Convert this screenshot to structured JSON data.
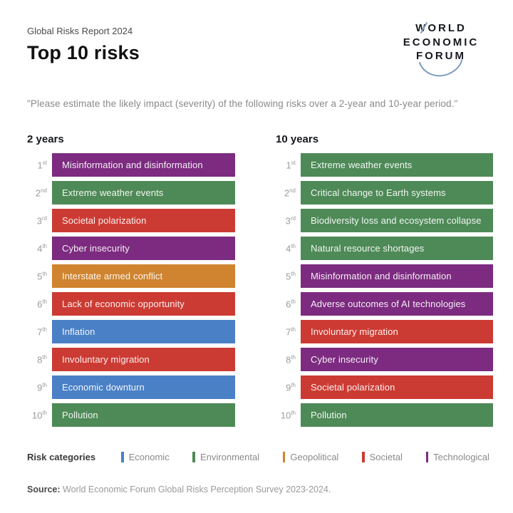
{
  "header": {
    "report_label": "Global Risks Report 2024",
    "title": "Top 10 risks",
    "logo": {
      "line1": "WORLD",
      "line2": "ECONOMIC",
      "line3": "FORUM",
      "arc_color": "#7d9cbd"
    }
  },
  "question": "\"Please estimate the likely impact (severity) of the following risks over a 2-year and 10-year period.\"",
  "category_colors": {
    "economic": "#4a80c6",
    "environmental": "#4e8a57",
    "geopolitical": "#d0842f",
    "societal": "#cc3b33",
    "technological": "#7c2b80"
  },
  "chart_data": [
    {
      "type": "table",
      "title": "2 years",
      "columns": [
        "rank",
        "risk",
        "category"
      ],
      "rows": [
        {
          "rank": "1",
          "suffix": "st",
          "risk": "Misinformation and disinformation",
          "category": "technological"
        },
        {
          "rank": "2",
          "suffix": "nd",
          "risk": "Extreme weather events",
          "category": "environmental"
        },
        {
          "rank": "3",
          "suffix": "rd",
          "risk": "Societal polarization",
          "category": "societal"
        },
        {
          "rank": "4",
          "suffix": "th",
          "risk": "Cyber insecurity",
          "category": "technological"
        },
        {
          "rank": "5",
          "suffix": "th",
          "risk": "Interstate armed conflict",
          "category": "geopolitical"
        },
        {
          "rank": "6",
          "suffix": "th",
          "risk": "Lack of economic opportunity",
          "category": "societal"
        },
        {
          "rank": "7",
          "suffix": "th",
          "risk": "Inflation",
          "category": "economic"
        },
        {
          "rank": "8",
          "suffix": "th",
          "risk": "Involuntary migration",
          "category": "societal"
        },
        {
          "rank": "9",
          "suffix": "th",
          "risk": "Economic downturn",
          "category": "economic"
        },
        {
          "rank": "10",
          "suffix": "th",
          "risk": "Pollution",
          "category": "environmental"
        }
      ]
    },
    {
      "type": "table",
      "title": "10 years",
      "columns": [
        "rank",
        "risk",
        "category"
      ],
      "rows": [
        {
          "rank": "1",
          "suffix": "st",
          "risk": "Extreme weather events",
          "category": "environmental"
        },
        {
          "rank": "2",
          "suffix": "nd",
          "risk": "Critical change to Earth systems",
          "category": "environmental"
        },
        {
          "rank": "3",
          "suffix": "rd",
          "risk": "Biodiversity loss and ecosystem collapse",
          "category": "environmental"
        },
        {
          "rank": "4",
          "suffix": "th",
          "risk": "Natural resource shortages",
          "category": "environmental"
        },
        {
          "rank": "5",
          "suffix": "th",
          "risk": "Misinformation and disinformation",
          "category": "technological"
        },
        {
          "rank": "6",
          "suffix": "th",
          "risk": "Adverse outcomes of AI technologies",
          "category": "technological"
        },
        {
          "rank": "7",
          "suffix": "th",
          "risk": "Involuntary migration",
          "category": "societal"
        },
        {
          "rank": "8",
          "suffix": "th",
          "risk": "Cyber insecurity",
          "category": "technological"
        },
        {
          "rank": "9",
          "suffix": "th",
          "risk": "Societal polarization",
          "category": "societal"
        },
        {
          "rank": "10",
          "suffix": "th",
          "risk": "Pollution",
          "category": "environmental"
        }
      ]
    }
  ],
  "legend": {
    "label": "Risk categories",
    "items": [
      {
        "label": "Economic",
        "category": "economic"
      },
      {
        "label": "Environmental",
        "category": "environmental"
      },
      {
        "label": "Geopolitical",
        "category": "geopolitical"
      },
      {
        "label": "Societal",
        "category": "societal"
      },
      {
        "label": "Technological",
        "category": "technological"
      }
    ]
  },
  "source": {
    "label": "Source:",
    "text": " World Economic Forum Global Risks Perception Survey 2023-2024."
  }
}
